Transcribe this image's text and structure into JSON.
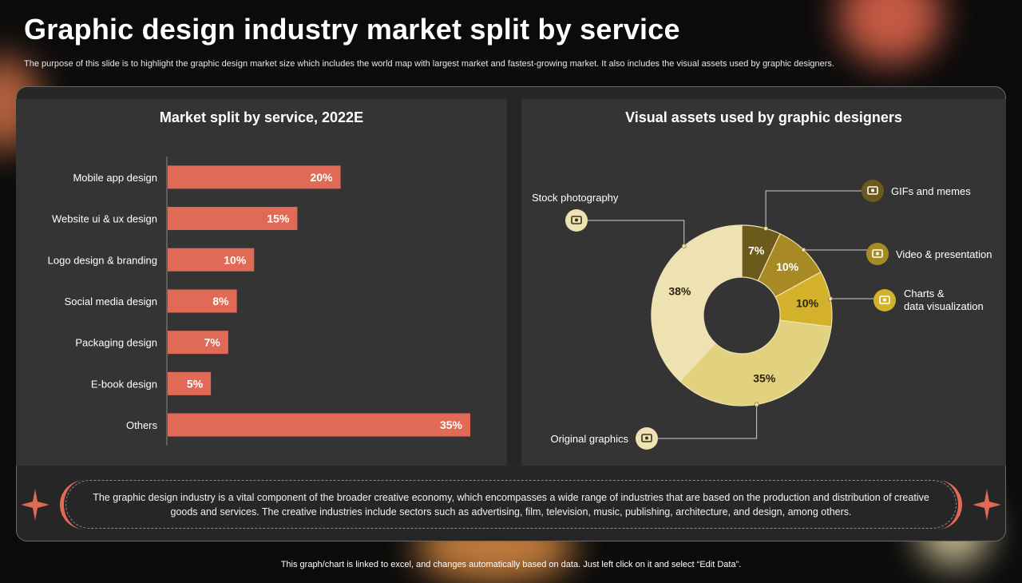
{
  "slide": {
    "title": "Graphic design industry market split by service",
    "subtitle": "The purpose of this slide is to highlight the graphic design market size which includes the world map with largest market and fastest-growing market. It also includes the visual assets used by graphic designers.",
    "summary": "The graphic design industry is a vital component of the broader creative economy, which encompasses a wide range of industries that are based on the production and distribution of creative goods and services. The creative industries include sectors such as advertising, film, television, music, publishing, architecture, and design, among others.",
    "footer": "This graph/chart is linked to excel, and changes automatically based on data. Just left click on it and select “Edit Data”."
  },
  "colors": {
    "bar": "#e06a55",
    "background": "#0b0b0b",
    "panel": "#343434",
    "accent": "#e06a55"
  },
  "chart_data": [
    {
      "type": "bar",
      "orientation": "horizontal",
      "title": "Market split by service, 2022E",
      "categories": [
        "Mobile app design",
        "Website ui & ux design",
        "Logo design & branding",
        "Social media design",
        "Packaging design",
        "E-book design",
        "Others"
      ],
      "values": [
        20,
        15,
        10,
        8,
        7,
        5,
        35
      ],
      "data_labels": [
        "20%",
        "15%",
        "10%",
        "8%",
        "7%",
        "5%",
        "35%"
      ],
      "unit": "%",
      "xlim": [
        0,
        40
      ]
    },
    {
      "type": "pie",
      "style": "donut",
      "title": "Visual assets used by graphic designers",
      "slices": [
        {
          "label": "GIFs and memes",
          "value": 7,
          "display": "7%",
          "color": "#6b5a1c",
          "icon": "gif-icon"
        },
        {
          "label": "Video & presentation",
          "value": 10,
          "display": "10%",
          "color": "#a88a24",
          "icon": "video-icon"
        },
        {
          "label": "Charts & data visualization",
          "label_lines": [
            "Charts &",
            "data visualization"
          ],
          "value": 10,
          "display": "10%",
          "color": "#d4b12a",
          "icon": "presentation-chart-icon"
        },
        {
          "label": "Original graphics",
          "value": 35,
          "display": "35%",
          "color": "#e2d17e",
          "icon": "pen-paper-icon"
        },
        {
          "label": "Stock photography",
          "value": 38,
          "display": "38%",
          "color": "#efe2b2",
          "icon": "camera-icon"
        }
      ]
    }
  ]
}
